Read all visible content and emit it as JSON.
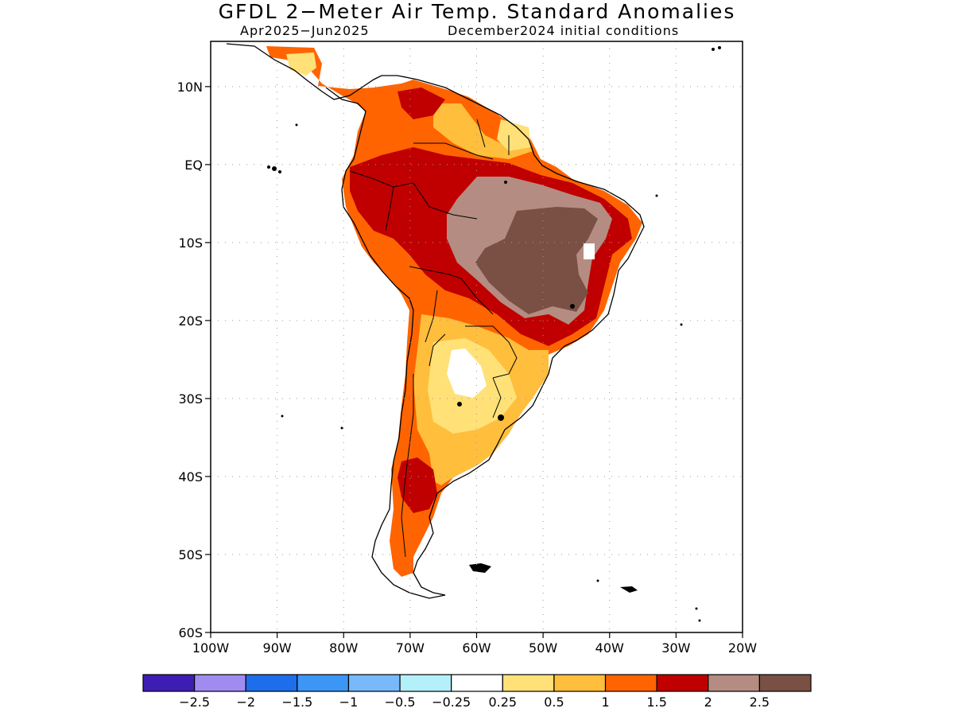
{
  "header": {
    "title": "GFDL 2−Meter Air Temp. Standard Anomalies",
    "period": "Apr2025−Jun2025",
    "initial_conditions": "December2024 initial conditions"
  },
  "map": {
    "lat_labels": [
      "10N",
      "EQ",
      "10S",
      "20S",
      "30S",
      "40S",
      "50S",
      "60S"
    ],
    "lon_labels": [
      "100W",
      "90W",
      "80W",
      "70W",
      "60W",
      "50W",
      "40W",
      "30W",
      "20W"
    ],
    "lat_range": [
      -60,
      15.8
    ],
    "lon_range": [
      -100,
      -20
    ]
  },
  "colorbar": {
    "colors": [
      "#3c1eb4",
      "#a08cf0",
      "#1e6eeb",
      "#3c96f5",
      "#78b9fa",
      "#b4f0fa",
      "#ffffff",
      "#ffe178",
      "#ffbe3c",
      "#ff6400",
      "#c00000",
      "#b48c82",
      "#7a5044"
    ],
    "labels": [
      "−2.5",
      "−2",
      "−1.5",
      "−1",
      "−0.5",
      "−0.25",
      "0.25",
      "0.5",
      "1",
      "1.5",
      "2",
      "2.5"
    ]
  }
}
